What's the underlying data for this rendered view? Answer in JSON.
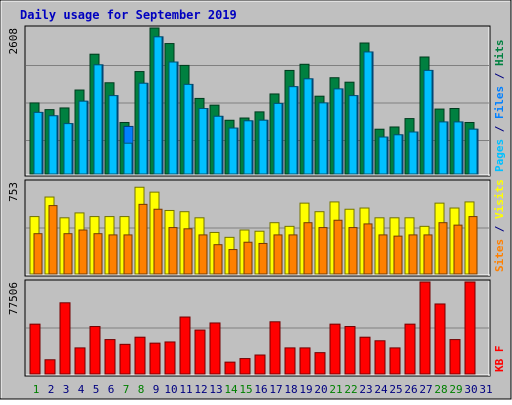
{
  "title": "Daily usage for September 2019",
  "colors": {
    "background": "#c0c0c0",
    "plot_background": "#c0c0c0",
    "title": "#0000c0",
    "hits": "#008040",
    "files": "#0080ff",
    "pages": "#00c0ff",
    "visits": "#ffff00",
    "sites": "#ff8000",
    "kbytes": "#ff0000",
    "weekend": "#008000",
    "weekday": "#000080"
  },
  "chart_data": [
    {
      "type": "bar",
      "panel": "hits-files-pages",
      "ymax_label": "2608",
      "ylim": [
        0,
        2608
      ],
      "right_label_parts": [
        {
          "text": "Pages",
          "color": "#00c0ff"
        },
        {
          "text": " / ",
          "color": "#000080"
        },
        {
          "text": "Files",
          "color": "#0080ff"
        },
        {
          "text": " / ",
          "color": "#000080"
        },
        {
          "text": "Hits",
          "color": "#008040"
        }
      ],
      "categories": [
        "1",
        "2",
        "3",
        "4",
        "5",
        "6",
        "7",
        "8",
        "9",
        "10",
        "11",
        "12",
        "13",
        "14",
        "15",
        "16",
        "17",
        "18",
        "19",
        "20",
        "21",
        "22",
        "23",
        "24",
        "25",
        "26",
        "27",
        "28",
        "29",
        "30",
        "31"
      ],
      "series": [
        {
          "name": "Hits",
          "values": [
            1270,
            1150,
            1180,
            1500,
            2140,
            1630,
            920,
            1830,
            2608,
            2330,
            1940,
            1350,
            1230,
            960,
            1000,
            1110,
            1430,
            1850,
            1960,
            1390,
            1720,
            1640,
            2340,
            800,
            840,
            990,
            2090,
            1160,
            1170,
            920,
            0
          ]
        },
        {
          "name": "Files",
          "values": [
            1100,
            1040,
            900,
            1300,
            1950,
            1400,
            850,
            1620,
            2450,
            2000,
            1600,
            1170,
            1030,
            820,
            950,
            960,
            1260,
            1560,
            1700,
            1270,
            1520,
            1400,
            2180,
            660,
            700,
            750,
            1850,
            930,
            930,
            800,
            0
          ]
        },
        {
          "name": "Pages",
          "values": [
            1100,
            1040,
            900,
            1300,
            1950,
            1400,
            550,
            1620,
            2450,
            2000,
            1600,
            1170,
            1030,
            820,
            950,
            960,
            1260,
            1560,
            1700,
            1270,
            1520,
            1400,
            2180,
            660,
            700,
            750,
            1850,
            930,
            930,
            800,
            0
          ]
        }
      ]
    },
    {
      "type": "bar",
      "panel": "visits-sites",
      "ymax_label": "753",
      "ylim": [
        0,
        753
      ],
      "right_label_parts": [
        {
          "text": "Sites",
          "color": "#ff8000"
        },
        {
          "text": " / ",
          "color": "#000080"
        },
        {
          "text": "Visits",
          "color": "#ffff00"
        }
      ],
      "categories": [
        "1",
        "2",
        "3",
        "4",
        "5",
        "6",
        "7",
        "8",
        "9",
        "10",
        "11",
        "12",
        "13",
        "14",
        "15",
        "16",
        "17",
        "18",
        "19",
        "20",
        "21",
        "22",
        "23",
        "24",
        "25",
        "26",
        "27",
        "28",
        "29",
        "30",
        "31"
      ],
      "series": [
        {
          "name": "Visits",
          "values": [
            470,
            630,
            460,
            500,
            470,
            470,
            470,
            710,
            670,
            520,
            510,
            460,
            340,
            300,
            360,
            350,
            420,
            390,
            580,
            510,
            590,
            530,
            540,
            460,
            460,
            460,
            390,
            580,
            540,
            590,
            0
          ]
        },
        {
          "name": "Sites",
          "values": [
            330,
            560,
            330,
            360,
            330,
            320,
            320,
            570,
            530,
            380,
            370,
            320,
            240,
            200,
            260,
            250,
            320,
            320,
            420,
            380,
            440,
            380,
            410,
            320,
            310,
            320,
            320,
            420,
            400,
            470,
            0
          ]
        }
      ]
    },
    {
      "type": "bar",
      "panel": "kbytes",
      "ymax_label": "77506",
      "ylim": [
        0,
        77506
      ],
      "right_label_parts": [
        {
          "text": "KB F",
          "color": "#ff0000"
        }
      ],
      "categories": [
        "1",
        "2",
        "3",
        "4",
        "5",
        "6",
        "7",
        "8",
        "9",
        "10",
        "11",
        "12",
        "13",
        "14",
        "15",
        "16",
        "17",
        "18",
        "19",
        "20",
        "21",
        "22",
        "23",
        "24",
        "25",
        "26",
        "27",
        "28",
        "29",
        "30",
        "31"
      ],
      "series": [
        {
          "name": "KB F",
          "values": [
            42000,
            12000,
            60000,
            22000,
            40000,
            29000,
            25000,
            31000,
            26000,
            27000,
            48000,
            37000,
            43000,
            10000,
            13000,
            16000,
            44000,
            22000,
            22000,
            18000,
            42000,
            40000,
            31000,
            28000,
            22000,
            42000,
            77506,
            59000,
            29000,
            77506,
            0
          ]
        }
      ]
    }
  ],
  "x_axis": {
    "labels": [
      "1",
      "2",
      "3",
      "4",
      "5",
      "6",
      "7",
      "8",
      "9",
      "10",
      "11",
      "12",
      "13",
      "14",
      "15",
      "16",
      "17",
      "18",
      "19",
      "20",
      "21",
      "22",
      "23",
      "24",
      "25",
      "26",
      "27",
      "28",
      "29",
      "30",
      "31"
    ],
    "weekend": [
      true,
      false,
      false,
      false,
      false,
      false,
      true,
      true,
      false,
      false,
      false,
      false,
      false,
      true,
      true,
      false,
      false,
      false,
      false,
      false,
      true,
      true,
      false,
      false,
      false,
      false,
      false,
      true,
      true,
      false,
      false
    ]
  }
}
